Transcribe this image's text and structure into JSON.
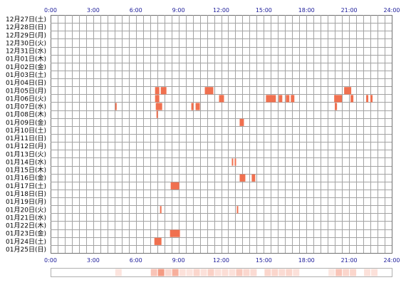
{
  "chart_data": {
    "type": "heatmap",
    "x_unit": "hour",
    "xlim": [
      0,
      24
    ],
    "x_ticks": [
      "0:00",
      "3:00",
      "6:00",
      "9:00",
      "12:00",
      "15:00",
      "18:00",
      "21:00",
      "24:00"
    ],
    "days": [
      "12月27日(土)",
      "12月28日(日)",
      "12月29日(月)",
      "12月30日(火)",
      "12月31日(水)",
      "01月01日(木)",
      "01月02日(金)",
      "01月03日(土)",
      "01月04日(日)",
      "01月05日(月)",
      "01月06日(火)",
      "01月07日(水)",
      "01月08日(木)",
      "01月09日(金)",
      "01月10日(土)",
      "01月11日(日)",
      "01月12日(月)",
      "01月13日(火)",
      "01月14日(水)",
      "01月15日(木)",
      "01月16日(金)",
      "01月17日(土)",
      "01月18日(日)",
      "01月19日(月)",
      "01月20日(火)",
      "01月21日(水)",
      "01月22日(木)",
      "01月23日(金)",
      "01月24日(土)",
      "01月25日(日)"
    ],
    "series": [
      {
        "values": [
          {
            "day": 9,
            "start": 7.35,
            "end": 7.65
          },
          {
            "day": 9,
            "start": 7.75,
            "end": 8.15
          },
          {
            "day": 9,
            "start": 10.85,
            "end": 11.45
          },
          {
            "day": 9,
            "start": 20.65,
            "end": 21.15
          },
          {
            "day": 10,
            "start": 7.35,
            "end": 7.65
          },
          {
            "day": 10,
            "start": 11.85,
            "end": 12.2
          },
          {
            "day": 10,
            "start": 15.15,
            "end": 15.85
          },
          {
            "day": 10,
            "start": 16.05,
            "end": 16.3
          },
          {
            "day": 10,
            "start": 16.55,
            "end": 16.8
          },
          {
            "day": 10,
            "start": 16.9,
            "end": 17.15
          },
          {
            "day": 10,
            "start": 19.95,
            "end": 20.5
          },
          {
            "day": 10,
            "start": 21.1,
            "end": 21.3
          },
          {
            "day": 10,
            "start": 22.2,
            "end": 22.35
          },
          {
            "day": 10,
            "start": 22.5,
            "end": 22.65
          },
          {
            "day": 11,
            "start": 4.55,
            "end": 4.65
          },
          {
            "day": 11,
            "start": 7.4,
            "end": 7.85
          },
          {
            "day": 11,
            "start": 9.9,
            "end": 10.05
          },
          {
            "day": 11,
            "start": 10.2,
            "end": 10.5
          },
          {
            "day": 11,
            "start": 20.0,
            "end": 20.15
          },
          {
            "day": 12,
            "start": 7.45,
            "end": 7.55
          },
          {
            "day": 13,
            "start": 13.3,
            "end": 13.6
          },
          {
            "day": 18,
            "start": 12.75,
            "end": 12.85
          },
          {
            "day": 18,
            "start": 12.95,
            "end": 13.05
          },
          {
            "day": 20,
            "start": 13.3,
            "end": 13.7
          },
          {
            "day": 20,
            "start": 14.15,
            "end": 14.4
          },
          {
            "day": 21,
            "start": 8.45,
            "end": 9.05
          },
          {
            "day": 24,
            "start": 7.7,
            "end": 7.8
          },
          {
            "day": 24,
            "start": 13.1,
            "end": 13.2
          },
          {
            "day": 27,
            "start": 8.4,
            "end": 9.1
          },
          {
            "day": 28,
            "start": 7.3,
            "end": 7.8
          }
        ]
      }
    ],
    "grid": true,
    "colors": {
      "bar": "#f0704f",
      "grid": "#a3a3a3",
      "border": "#707070",
      "label": "#1a1a99",
      "strip_border": "#b0b0b0",
      "strip_tint": "#f0704f"
    }
  }
}
